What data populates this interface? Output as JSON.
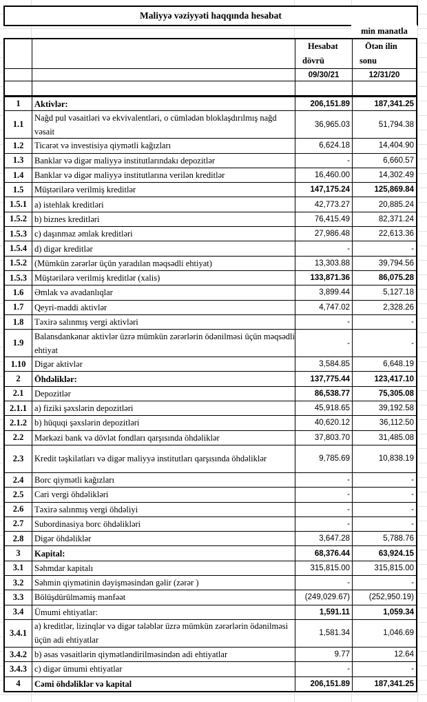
{
  "title": "Maliyyə vəziyyəti haqqında hesabat",
  "unit": "min manatla",
  "header": {
    "col3_line1": "Hesabat",
    "col3_line2": "dövrü",
    "col4_line1": "Ötən ilin",
    "col4_line2": "sonu",
    "col3_date": "09/30/21",
    "col4_date": "12/31/20"
  },
  "rows": [
    {
      "num": "1",
      "label": "Aktivlər:",
      "v1": "206,151.89",
      "v2": "187,341.25",
      "bl": true,
      "bv": true
    },
    {
      "num": "1.1",
      "label": "Nağd pul vəsaitləri və  ekvivalentləri, o cümlədən bloklaşdırılmış nağd vəsait",
      "v1": "36,965.03",
      "v2": "51,794.38",
      "tall": true
    },
    {
      "num": "1.2",
      "label": "Ticarət və investisiya qiymətli kağızları",
      "v1": "6,624.18",
      "v2": "14,404.90"
    },
    {
      "num": "1.3",
      "label": "Banklar və digər maliyyə institutlarındakı depozitlər",
      "v1": "-",
      "v2": "6,660.57"
    },
    {
      "num": "1.4",
      "label": "Banklar və digər maliyyə institutlarına verilən kreditlər",
      "v1": "16,460.00",
      "v2": "14,302.49"
    },
    {
      "num": "1.5",
      "label": "Müştərilərə verilmiş kreditlər",
      "v1": "147,175.24",
      "v2": "125,869.84",
      "bv": true
    },
    {
      "num": "1.5.1",
      "label": "a) istehlak kreditləri",
      "v1": "42,773.27",
      "v2": "20,885.24"
    },
    {
      "num": "1.5.2",
      "label": "b) biznes kreditləri",
      "v1": "76,415.49",
      "v2": "82,371.24"
    },
    {
      "num": "1.5.3",
      "label": "c) daşınmaz əmlak kreditləri",
      "v1": "27,986.48",
      "v2": "22,613.36"
    },
    {
      "num": "1.5.4",
      "label": "d) digər kreditlər",
      "v1": "-",
      "v2": "-"
    },
    {
      "num": "1.5.2",
      "label": "(Mümkün zərərlər üçün yaradılan məqsədli ehtiyat)",
      "v1": "13,303.88",
      "v2": "39,794.56"
    },
    {
      "num": "1.5.3",
      "label": "Müştərilərə verilmiş kreditlər (xalis)",
      "v1": "133,871.36",
      "v2": "86,075.28",
      "bv": true
    },
    {
      "num": "1.6",
      "label": "Əmlak və avadanlıqlar",
      "v1": "3,899.44",
      "v2": "5,127.18"
    },
    {
      "num": "1.7",
      "label": "Qeyri-maddi aktivlər",
      "v1": "4,747.02",
      "v2": "2,328.26"
    },
    {
      "num": "1.8",
      "label": "Təxirə salınmış vergi aktivləri",
      "v1": "-",
      "v2": "-"
    },
    {
      "num": "1.9",
      "label": "Balansdankənar aktivlər üzrə mümkün zərərlərin ödənilməsi üçün məqsədli ehtiyat",
      "v1": "-",
      "v2": "-",
      "tall": true
    },
    {
      "num": "1.10",
      "label": "Digər aktivlər",
      "v1": "3,584.85",
      "v2": "6,648.19"
    },
    {
      "num": "2",
      "label": "Öhdəliklər:",
      "v1": "137,775.44",
      "v2": "123,417.10",
      "bl": true,
      "bv": true
    },
    {
      "num": "2.1",
      "label": "Depozitlər",
      "v1": "86,538.77",
      "v2": "75,305.08",
      "bv": true
    },
    {
      "num": "2.1.1",
      "label": "a) fiziki şəxslərin depozitləri",
      "v1": "45,918.65",
      "v2": "39,192.58"
    },
    {
      "num": "2.1.2",
      "label": "b) hüquqi şəxslərin depozitləri",
      "v1": "40,620.12",
      "v2": "36,112.50"
    },
    {
      "num": "2.2",
      "label": "Mərkəzi bank və dövlət fondları qarşısında öhdəliklər",
      "v1": "37,803.70",
      "v2": "31,485.08"
    },
    {
      "num": "2.3",
      "label": "Kredit təşkilatları və digər maliyyə institutları qarşısında öhdəliklər",
      "v1": "9,785.69",
      "v2": "10,838.19",
      "tall": true
    },
    {
      "num": "2.4",
      "label": "Borc qiymətli kağızları",
      "v1": "-",
      "v2": "-"
    },
    {
      "num": "2.5",
      "label": "Cari vergi öhdəlikləri",
      "v1": "-",
      "v2": "-"
    },
    {
      "num": "2.6",
      "label": "Təxirə salınmış vergi öhdəliyi",
      "v1": "-",
      "v2": "-"
    },
    {
      "num": "2.7",
      "label": "Subordinasiya borc öhdəlikləri",
      "v1": "-",
      "v2": "-"
    },
    {
      "num": "2.8",
      "label": "Digər öhdəliklər",
      "v1": "3,647.28",
      "v2": "5,788.76"
    },
    {
      "num": "3",
      "label": "Kapital:",
      "v1": "68,376.44",
      "v2": "63,924.15",
      "bl": true,
      "bv": true
    },
    {
      "num": "3.1",
      "label": "Səhmdar kapitalı",
      "v1": "315,815.00",
      "v2": "315,815.00"
    },
    {
      "num": "3.2",
      "label": "Səhmin qiymətinin dəyişməsindən gəlir (zərər )",
      "v1": "-",
      "v2": "-"
    },
    {
      "num": "3.3",
      "label": "Bölüşdürülməmiş mənfəət",
      "v1": "(249,029.67)",
      "v2": "(252,950.19)"
    },
    {
      "num": "3.4",
      "label": "Ümumi ehtiyatlar:",
      "v1": "1,591.11",
      "v2": "1,059.34",
      "bv": true
    },
    {
      "num": "3.4.1",
      "label": "a) kreditlər, lizinqlər və digər tələblər üzrə mümkün zərərlərin ödənilməsi üçün adi ehtiyatlar",
      "v1": "1,581.34",
      "v2": "1,046.69",
      "tall": true
    },
    {
      "num": "3.4.2",
      "label": "b) əsas vəsaitlərin qiymətləndirilməsindən adi ehtiyatlar",
      "v1": "9.77",
      "v2": "12.64"
    },
    {
      "num": "3.4.3",
      "label": "c) digər ümumi ehtiyatlar",
      "v1": "-",
      "v2": "-"
    },
    {
      "num": "4",
      "label": "Cəmi öhdəliklər və kapital",
      "v1": "206,151.89",
      "v2": "187,341.25",
      "bl": true,
      "bv": true
    }
  ]
}
